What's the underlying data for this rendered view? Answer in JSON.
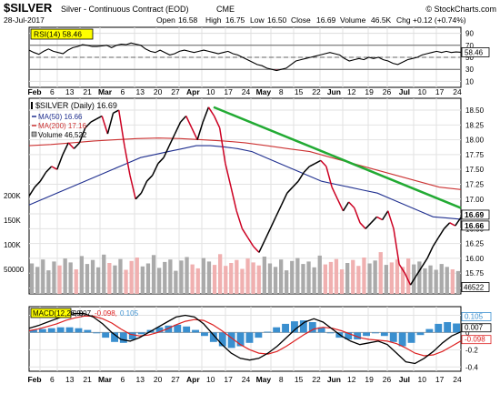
{
  "header": {
    "symbol": "$SILVER",
    "name": "Silver - Continuous Contract (EOD)",
    "exchange": "CME",
    "date": "28-Jul-2017",
    "open_label": "Open",
    "open": "16.58",
    "high_label": "High",
    "high": "16.75",
    "low_label": "Low",
    "low": "16.50",
    "close_label": "Close",
    "close": "16.69",
    "volume_label": "Volume",
    "volume": "46.5K",
    "chg_label": "Chg",
    "chg": "+0.12 (+0.74%)",
    "watermark": "© StockCharts.com"
  },
  "colors": {
    "price": "#000000",
    "price_down": "#cc0022",
    "ma50": "#1f2f8f",
    "ma200": "#cc3333",
    "volume_up": "#aaaaaa",
    "volume_down": "#f0b0b0",
    "trendline": "#22aa33",
    "rsi": "#000000",
    "rsi_fill": "#b04a5a",
    "macd": "#000000",
    "signal": "#dd2222",
    "histogram": "#3a8fcf",
    "legend_box": "#ffff00"
  },
  "x_axis": {
    "top_labels": [
      "Feb",
      "6",
      "13",
      "21",
      "Mar",
      "6",
      "13",
      "20",
      "27",
      "Apr",
      "10",
      "17",
      "24",
      "May",
      "8",
      "15",
      "22",
      "Jun",
      "12",
      "19",
      "26",
      "Jul",
      "10",
      "17",
      "24"
    ],
    "bottom_labels": [
      "Feb",
      "6",
      "13",
      "21",
      "Mar",
      "6",
      "13",
      "20",
      "27",
      "Apr",
      "10",
      "17",
      "24",
      "May",
      "8",
      "15",
      "22",
      "Jun",
      "12",
      "19",
      "26",
      "Jul",
      "10",
      "17",
      "24"
    ]
  },
  "chart_data": [
    {
      "type": "line",
      "panel": "rsi",
      "legend": "RSI(14) 58.46",
      "ylim": [
        0,
        100
      ],
      "y_ticks": [
        90,
        70,
        50,
        30,
        10
      ],
      "last_value": "58.46",
      "reference_lines": [
        70,
        50,
        30
      ],
      "series": [
        {
          "name": "RSI(14)",
          "values": [
            62,
            58,
            55,
            60,
            64,
            60,
            58,
            56,
            62,
            66,
            68,
            71,
            70,
            68,
            68,
            69,
            70,
            66,
            70,
            72,
            71,
            74,
            72,
            70,
            64,
            60,
            58,
            62,
            58,
            54,
            56,
            60,
            62,
            60,
            58,
            60,
            62,
            60,
            58,
            56,
            58,
            60,
            56,
            54,
            50,
            46,
            42,
            38,
            36,
            32,
            30,
            28,
            30,
            32,
            38,
            44,
            46,
            48,
            50,
            52,
            54,
            56,
            58,
            56,
            54,
            48,
            44,
            46,
            48,
            46,
            50,
            48,
            50,
            46,
            44,
            40,
            38,
            42,
            46,
            48,
            50,
            54,
            56,
            58,
            60,
            58,
            60,
            58,
            59,
            58.46
          ]
        }
      ]
    },
    {
      "type": "line",
      "panel": "price",
      "title": "$SILVER (Daily) 16.69",
      "legend": [
        {
          "name": "$SILVER (Daily)",
          "value": "16.69"
        },
        {
          "name": "MA(50)",
          "value": "16.66"
        },
        {
          "name": "MA(200)",
          "value": "17.16"
        },
        {
          "name": "Volume",
          "value": "46,522"
        }
      ],
      "ylim": [
        15.4,
        18.7
      ],
      "y_ticks": [
        18.5,
        18.25,
        18.0,
        17.75,
        17.5,
        17.25,
        17.0,
        16.75,
        16.5,
        16.25,
        16.0,
        15.75,
        15.5
      ],
      "price_tags": [
        "16.69",
        "16.66"
      ],
      "series": [
        {
          "name": "$SILVER (Daily)",
          "values": [
            17.05,
            17.2,
            17.3,
            17.45,
            17.55,
            17.5,
            17.75,
            17.95,
            17.85,
            17.95,
            18.2,
            18.3,
            18.35,
            18.4,
            18.1,
            18.45,
            18.5,
            17.9,
            17.4,
            17.0,
            17.1,
            17.3,
            17.4,
            17.6,
            17.7,
            17.9,
            18.1,
            18.3,
            18.4,
            18.2,
            18.0,
            18.3,
            18.55,
            18.4,
            18.2,
            17.6,
            17.2,
            16.8,
            16.5,
            16.35,
            16.2,
            16.1,
            16.3,
            16.5,
            16.7,
            16.9,
            17.1,
            17.2,
            17.3,
            17.45,
            17.55,
            17.6,
            17.65,
            17.55,
            17.2,
            17.0,
            16.8,
            16.95,
            16.85,
            16.6,
            16.5,
            16.6,
            16.7,
            16.65,
            16.8,
            16.5,
            15.9,
            15.75,
            15.55,
            15.7,
            15.85,
            16.0,
            16.2,
            16.35,
            16.5,
            16.6,
            16.55,
            16.69
          ]
        },
        {
          "name": "MA(50)",
          "values": [
            16.9,
            17.0,
            17.1,
            17.2,
            17.3,
            17.4,
            17.5,
            17.6,
            17.7,
            17.75,
            17.8,
            17.85,
            17.9,
            17.9,
            17.88,
            17.85,
            17.8,
            17.7,
            17.6,
            17.5,
            17.4,
            17.3,
            17.25,
            17.2,
            17.15,
            17.1,
            17.0,
            16.9,
            16.8,
            16.7,
            16.68,
            16.66
          ]
        },
        {
          "name": "MA(200)",
          "values": [
            17.9,
            17.92,
            17.95,
            17.98,
            18.0,
            18.02,
            18.03,
            18.02,
            18.0,
            17.98,
            17.95,
            17.9,
            17.85,
            17.8,
            17.7,
            17.6,
            17.5,
            17.4,
            17.3,
            17.2,
            17.16
          ]
        }
      ],
      "trendline": {
        "from": [
          "Apr 17",
          18.55
        ],
        "to": [
          "Jul 28",
          16.85
        ]
      }
    },
    {
      "type": "bar",
      "panel": "volume",
      "ylabel": "Volume",
      "y_ticks": [
        "200K",
        "150K",
        "100K",
        "50000"
      ],
      "ylim": [
        0,
        250000
      ],
      "values": [
        62000,
        55000,
        70000,
        48000,
        66000,
        58000,
        72000,
        64000,
        50000,
        77000,
        61000,
        69000,
        54000,
        80000,
        63000,
        58000,
        71000,
        49000,
        67000,
        74000,
        56000,
        62000,
        79000,
        53000,
        65000,
        70000,
        47000,
        68000,
        75000,
        60000,
        52000,
        73000,
        66000,
        59000,
        81000,
        57000,
        63000,
        69000,
        51000,
        72000,
        64000,
        58000,
        76000,
        62000,
        55000,
        70000,
        48000,
        67000,
        73000,
        61000,
        66000,
        54000,
        78000,
        60000,
        65000,
        71000,
        50000,
        63000,
        69000,
        57000,
        74000,
        62000,
        68000,
        85000,
        59000,
        64000,
        70000,
        55000,
        72000,
        60000,
        66000,
        52000,
        58000,
        49000,
        61000,
        55000,
        50000,
        46522
      ]
    },
    {
      "type": "line",
      "panel": "macd",
      "legend": "MACD(12,26,9) 0.007, -0.098, 0.105",
      "legend_parts": [
        {
          "name": "MACD(12,26,9)",
          "value": "0.007"
        },
        {
          "name": "signal",
          "value": "-0.098"
        },
        {
          "name": "histogram",
          "value": "0.105"
        }
      ],
      "ylim": [
        -0.45,
        0.3
      ],
      "y_ticks": [
        0.2,
        0.0,
        -0.2,
        -0.4
      ],
      "price_tags": [
        "0.105",
        "0.007",
        "-0.098"
      ],
      "series": [
        {
          "name": "MACD",
          "values": [
            0.05,
            0.08,
            0.12,
            0.16,
            0.2,
            0.22,
            0.22,
            0.18,
            0.1,
            0.0,
            -0.08,
            -0.1,
            -0.06,
            0.0,
            0.06,
            0.12,
            0.18,
            0.2,
            0.18,
            0.1,
            -0.02,
            -0.14,
            -0.24,
            -0.3,
            -0.32,
            -0.3,
            -0.24,
            -0.16,
            -0.06,
            0.04,
            0.12,
            0.16,
            0.12,
            0.04,
            -0.04,
            -0.1,
            -0.14,
            -0.12,
            -0.1,
            -0.14,
            -0.24,
            -0.34,
            -0.36,
            -0.3,
            -0.22,
            -0.12,
            -0.04,
            0.007
          ]
        },
        {
          "name": "Signal",
          "values": [
            0.02,
            0.04,
            0.07,
            0.1,
            0.14,
            0.17,
            0.19,
            0.19,
            0.16,
            0.11,
            0.04,
            -0.02,
            -0.04,
            -0.03,
            0.0,
            0.04,
            0.09,
            0.13,
            0.15,
            0.14,
            0.09,
            0.02,
            -0.06,
            -0.14,
            -0.2,
            -0.24,
            -0.25,
            -0.22,
            -0.16,
            -0.09,
            -0.02,
            0.04,
            0.06,
            0.05,
            0.02,
            -0.02,
            -0.06,
            -0.08,
            -0.09,
            -0.1,
            -0.13,
            -0.18,
            -0.24,
            -0.27,
            -0.26,
            -0.22,
            -0.16,
            -0.098
          ]
        },
        {
          "name": "Histogram",
          "values": [
            0.03,
            0.04,
            0.05,
            0.06,
            0.06,
            0.05,
            0.03,
            -0.01,
            -0.06,
            -0.11,
            -0.12,
            -0.08,
            -0.02,
            0.03,
            0.06,
            0.08,
            0.09,
            0.07,
            0.03,
            -0.04,
            -0.11,
            -0.16,
            -0.18,
            -0.16,
            -0.12,
            -0.06,
            0.01,
            0.06,
            0.1,
            0.13,
            0.14,
            0.12,
            0.06,
            -0.01,
            -0.06,
            -0.08,
            -0.08,
            -0.04,
            -0.01,
            -0.04,
            -0.11,
            -0.16,
            -0.12,
            -0.03,
            0.04,
            0.1,
            0.12,
            0.105
          ]
        }
      ]
    }
  ]
}
